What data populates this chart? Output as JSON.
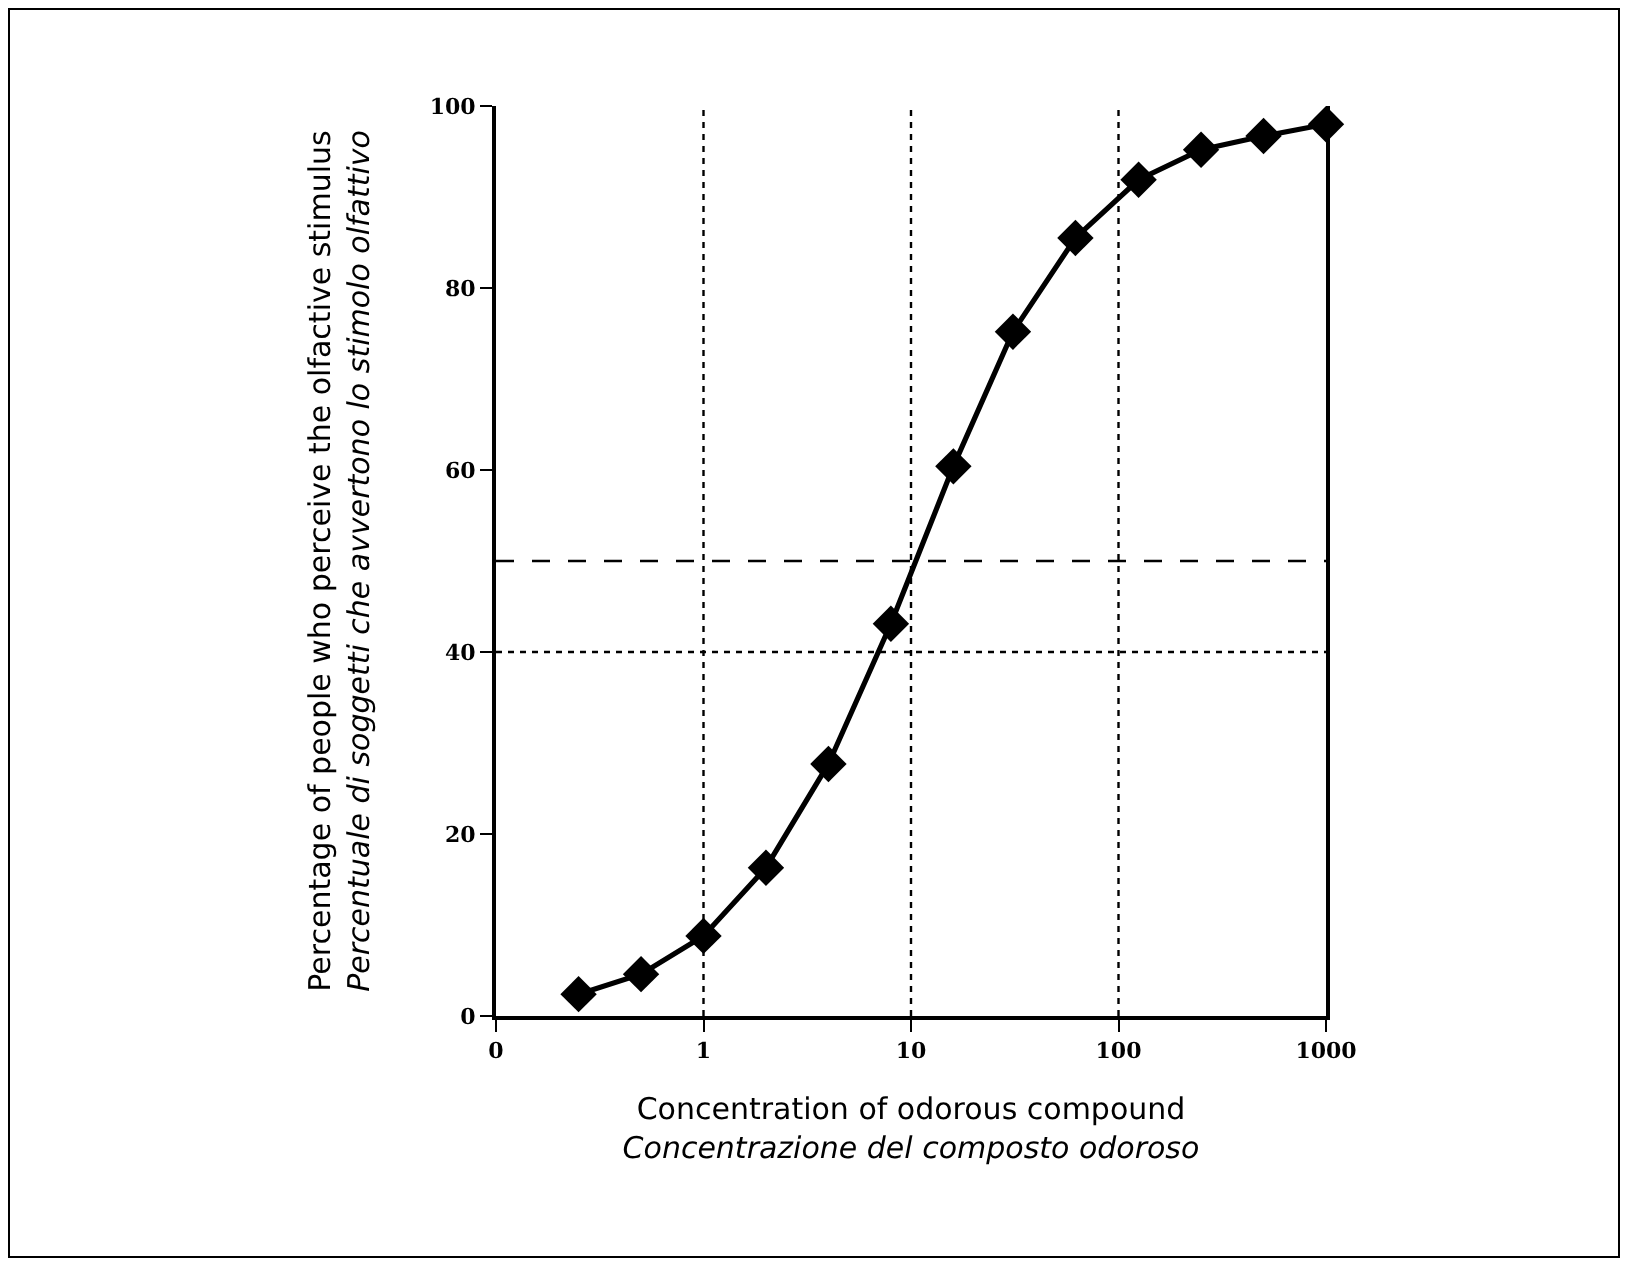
{
  "chart_data": {
    "type": "line",
    "xlabel": "Concentration of odorous compound\nConcentrazione del composto odoroso",
    "ylabel": "Percentage of people who perceive the olfactive stimulus\nPercentuale di soggetti che avvertono lo stimolo olfattivo",
    "x": [
      0.25,
      0.5,
      1,
      2,
      4,
      8,
      16,
      31,
      62,
      125,
      250,
      500,
      1000
    ],
    "series": [
      {
        "color": "#000000",
        "values": [
          2.4,
          4.6,
          8.8,
          16.3,
          27.7,
          43.1,
          60.4,
          75.2,
          85.5,
          91.9,
          95.2,
          96.7,
          98
        ]
      }
    ],
    "log": "x",
    "xlim": [
      0.1,
      1000
    ],
    "xticks": [
      {
        "value": 0.1,
        "label": "0"
      },
      1,
      10,
      100,
      1000
    ],
    "ylim": [
      0,
      100
    ],
    "yticks": [
      0,
      20,
      40,
      60,
      80,
      100
    ],
    "marker": "diamond",
    "line_style": "solid",
    "ref_lines": [
      {
        "axis": "x",
        "value": 1,
        "line_style": "dotted"
      },
      {
        "axis": "x",
        "value": 10,
        "line_style": "dotted"
      },
      {
        "axis": "x",
        "value": 100,
        "line_style": "dotted"
      },
      {
        "axis": "y",
        "value": 40,
        "line_style": "dotted"
      },
      {
        "axis": "y",
        "value": 50,
        "line_style": "dashed"
      }
    ]
  }
}
